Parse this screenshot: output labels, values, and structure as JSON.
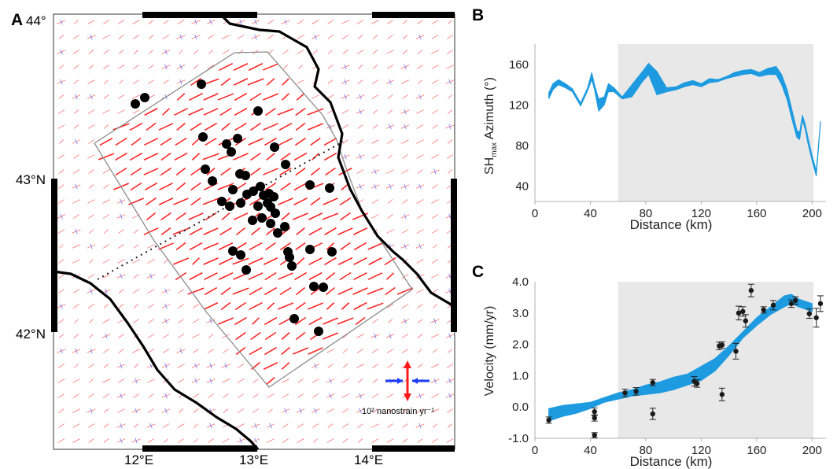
{
  "panels": {
    "a": {
      "letter": "A"
    },
    "b": {
      "letter": "B"
    },
    "c": {
      "letter": "C"
    }
  },
  "map": {
    "lon_ticks": [
      "12°E",
      "13°E",
      "14°E"
    ],
    "lat_ticks": [
      "44°",
      "43°N",
      "42°N"
    ],
    "lon_range": [
      11.3,
      14.8
    ],
    "lat_range": [
      41.33,
      44.02
    ],
    "scale_label": "10² nanostrain yr⁻¹",
    "colors": {
      "extension": "#ff1a1a",
      "compression": "#1a3cff",
      "dots": "#000000",
      "coast": "#000000",
      "polygon": "#8c8c8c"
    }
  },
  "chart_data": [
    {
      "type": "area",
      "panel": "B",
      "xlabel": "Distance (km)",
      "ylabel": "SHmax Azimuth (°)",
      "ylabel_main": "SH",
      "ylabel_sub": "max",
      "ylabel_rest": " Azimuth (°)",
      "xlim": [
        0,
        210
      ],
      "ylim": [
        25,
        180
      ],
      "xticks": [
        "0",
        "40",
        "80",
        "120",
        "160",
        "200"
      ],
      "yticks": [
        "40",
        "80",
        "120",
        "160"
      ],
      "shaded_x": [
        60,
        201
      ],
      "series": [
        {
          "x": [
            10,
            13,
            17,
            22,
            27,
            33,
            38,
            41,
            43,
            46,
            50,
            53,
            57,
            63,
            70,
            77,
            82,
            88,
            95,
            102,
            108,
            114,
            120,
            126,
            132,
            138,
            144,
            150,
            156,
            162,
            168,
            174,
            178,
            182,
            186,
            189,
            191,
            193,
            195,
            197,
            200,
            203,
            206
          ],
          "lower": [
            126,
            135,
            140,
            137,
            133,
            119,
            134,
            145,
            135,
            114,
            120,
            133,
            133,
            126,
            128,
            142,
            150,
            130,
            133,
            135,
            138,
            140,
            138,
            142,
            143,
            146,
            148,
            150,
            151,
            148,
            150,
            150,
            140,
            125,
            103,
            88,
            86,
            105,
            96,
            82,
            65,
            50,
            102
          ],
          "upper": [
            132,
            141,
            145,
            141,
            136,
            122,
            137,
            152,
            140,
            126,
            128,
            141,
            137,
            128,
            140,
            152,
            161,
            153,
            137,
            138,
            142,
            144,
            141,
            146,
            145,
            148,
            152,
            154,
            155,
            152,
            156,
            158,
            150,
            135,
            112,
            95,
            93,
            110,
            101,
            88,
            70,
            55,
            104
          ]
        }
      ],
      "colors": {
        "band": "#1e9be0",
        "shade": "#e8e8e8"
      }
    },
    {
      "type": "scatter",
      "panel": "C",
      "xlabel": "Distance (km)",
      "ylabel": "Velocity (mm/yr)",
      "xlim": [
        0,
        210
      ],
      "ylim": [
        -1.0,
        4.0
      ],
      "xticks": [
        "0",
        "40",
        "80",
        "120",
        "160",
        "200"
      ],
      "yticks": [
        "-1.0",
        "0.0",
        "1.0",
        "2.0",
        "3.0",
        "4.0"
      ],
      "shaded_x": [
        60,
        201
      ],
      "band": {
        "x": [
          10,
          20,
          30,
          40,
          50,
          60,
          70,
          80,
          90,
          100,
          110,
          120,
          130,
          140,
          150,
          160,
          170,
          180,
          185,
          190,
          200
        ],
        "lower": [
          -0.45,
          -0.3,
          -0.2,
          -0.05,
          0.15,
          0.25,
          0.35,
          0.4,
          0.45,
          0.55,
          0.7,
          0.85,
          1.15,
          1.65,
          2.2,
          2.6,
          2.95,
          3.2,
          3.3,
          3.2,
          3.05
        ],
        "upper": [
          -0.05,
          0.05,
          0.1,
          0.15,
          0.3,
          0.45,
          0.55,
          0.7,
          0.8,
          0.95,
          1.05,
          1.3,
          1.55,
          1.95,
          2.4,
          2.85,
          3.2,
          3.55,
          3.6,
          3.45,
          3.3
        ]
      },
      "points": [
        {
          "x": 10,
          "y": -0.42,
          "err": 0.1
        },
        {
          "x": 43,
          "y": -0.15,
          "err": 0.12
        },
        {
          "x": 43,
          "y": -0.35,
          "err": 0.1
        },
        {
          "x": 43,
          "y": -0.9,
          "err": 0.08
        },
        {
          "x": 65,
          "y": 0.45,
          "err": 0.12
        },
        {
          "x": 73,
          "y": 0.5,
          "err": 0.12
        },
        {
          "x": 85,
          "y": 0.78,
          "err": 0.1
        },
        {
          "x": 85,
          "y": -0.22,
          "err": 0.18
        },
        {
          "x": 115,
          "y": 0.82,
          "err": 0.15
        },
        {
          "x": 117,
          "y": 0.75,
          "err": 0.12
        },
        {
          "x": 133,
          "y": 1.95,
          "err": 0.12
        },
        {
          "x": 135,
          "y": 1.98,
          "err": 0.1
        },
        {
          "x": 135,
          "y": 0.4,
          "err": 0.2
        },
        {
          "x": 145,
          "y": 1.78,
          "err": 0.25
        },
        {
          "x": 147,
          "y": 3.0,
          "err": 0.22
        },
        {
          "x": 150,
          "y": 3.05,
          "err": 0.15
        },
        {
          "x": 152,
          "y": 2.75,
          "err": 0.2
        },
        {
          "x": 156,
          "y": 3.72,
          "err": 0.2
        },
        {
          "x": 165,
          "y": 3.1,
          "err": 0.1
        },
        {
          "x": 172,
          "y": 3.25,
          "err": 0.15
        },
        {
          "x": 185,
          "y": 3.3,
          "err": 0.12
        },
        {
          "x": 188,
          "y": 3.4,
          "err": 0.12
        },
        {
          "x": 198,
          "y": 2.98,
          "err": 0.15
        },
        {
          "x": 203,
          "y": 2.85,
          "err": 0.3
        },
        {
          "x": 206,
          "y": 3.3,
          "err": 0.25
        }
      ],
      "colors": {
        "band": "#1e9be0",
        "points": "#1a1a1a",
        "shade": "#e8e8e8"
      }
    }
  ]
}
